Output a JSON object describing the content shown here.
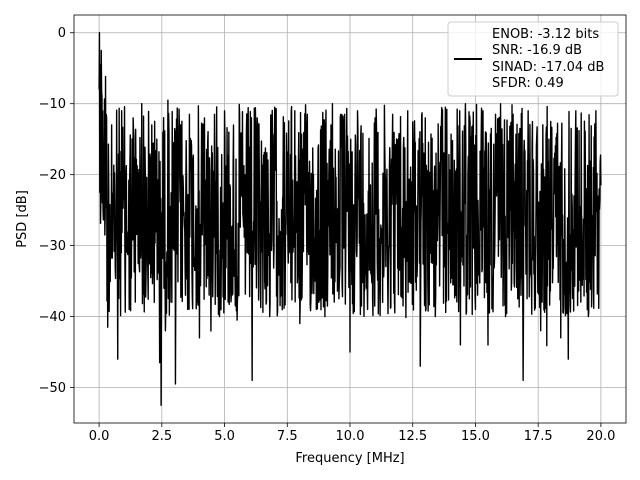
{
  "chart_data": {
    "type": "line",
    "title": "",
    "xlabel": "Frequency [MHz]",
    "ylabel": "PSD [dB]",
    "xlim": [
      -1,
      21
    ],
    "ylim": [
      -55,
      2.5
    ],
    "x_ticks": [
      0.0,
      2.5,
      5.0,
      7.5,
      10.0,
      12.5,
      15.0,
      17.5,
      20.0
    ],
    "x_tick_labels": [
      "0.0",
      "2.5",
      "5.0",
      "7.5",
      "10.0",
      "12.5",
      "15.0",
      "17.5",
      "20.0"
    ],
    "y_ticks": [
      0,
      -10,
      -20,
      -30,
      -40,
      -50
    ],
    "y_tick_labels": [
      "0",
      "−10",
      "−20",
      "−30",
      "−40",
      "−50"
    ],
    "grid": true,
    "legend_position": "top-right",
    "legend_entries": [
      "ENOB: -3.12 bits",
      "SNR: -16.9 dB",
      "SINAD: -17.04 dB",
      "SFDR: 0.49"
    ],
    "series": [
      {
        "color": "#000000",
        "x_range": [
          0,
          20
        ],
        "points": [
          [
            0.0,
            -8.0
          ],
          [
            0.02,
            0.0
          ],
          [
            0.05,
            -4.5
          ],
          [
            0.08,
            -2.5
          ],
          [
            0.11,
            -9.0
          ],
          [
            0.15,
            -11.0
          ],
          [
            0.2,
            -18.5
          ],
          [
            0.25,
            -26.0
          ],
          [
            0.3,
            -12.0
          ],
          [
            0.35,
            -41.5
          ],
          [
            0.5,
            -13.0
          ],
          [
            0.65,
            -33.0
          ],
          [
            0.75,
            -46.0
          ],
          [
            0.9,
            -11.0
          ],
          [
            1.2,
            -39.0
          ],
          [
            1.35,
            -12.0
          ],
          [
            1.6,
            -33.0
          ],
          [
            1.7,
            -10.0
          ],
          [
            1.95,
            -34.0
          ],
          [
            2.1,
            -13.0
          ],
          [
            2.2,
            -38.0
          ],
          [
            2.3,
            -15.0
          ],
          [
            2.42,
            -46.5
          ],
          [
            2.47,
            -52.5
          ],
          [
            2.55,
            -14.0
          ],
          [
            2.65,
            -42.0
          ],
          [
            2.75,
            -9.5
          ],
          [
            2.9,
            -38.0
          ],
          [
            3.05,
            -49.5
          ],
          [
            3.2,
            -13.0
          ],
          [
            3.45,
            -37.0
          ],
          [
            3.6,
            -11.5
          ],
          [
            3.9,
            -38.0
          ],
          [
            4.0,
            -43.0
          ],
          [
            4.2,
            -12.0
          ],
          [
            4.5,
            -35.0
          ],
          [
            4.6,
            -11.5
          ],
          [
            4.8,
            -40.0
          ],
          [
            5.0,
            -11.0
          ],
          [
            5.3,
            -37.0
          ],
          [
            5.5,
            -40.5
          ],
          [
            5.6,
            -11.5
          ],
          [
            5.9,
            -31.0
          ],
          [
            6.1,
            -49.0
          ],
          [
            6.3,
            -12.0
          ],
          [
            6.6,
            -35.0
          ],
          [
            6.8,
            -40.0
          ],
          [
            7.0,
            -10.5
          ],
          [
            7.4,
            -36.0
          ],
          [
            7.8,
            -11.0
          ],
          [
            8.0,
            -41.0
          ],
          [
            8.3,
            -11.5
          ],
          [
            8.6,
            -35.0
          ],
          [
            9.0,
            -40.0
          ],
          [
            9.3,
            -10.0
          ],
          [
            9.6,
            -33.0
          ],
          [
            10.0,
            -45.0
          ],
          [
            10.3,
            -11.0
          ],
          [
            10.7,
            -39.0
          ],
          [
            11.0,
            -12.0
          ],
          [
            11.3,
            -38.0
          ],
          [
            11.7,
            -11.5
          ],
          [
            12.0,
            -33.0
          ],
          [
            12.3,
            -11.0
          ],
          [
            12.8,
            -47.0
          ],
          [
            13.0,
            -12.0
          ],
          [
            13.4,
            -40.0
          ],
          [
            13.8,
            -10.5
          ],
          [
            14.2,
            -30.0
          ],
          [
            14.4,
            -44.0
          ],
          [
            14.6,
            -10.0
          ],
          [
            15.0,
            -39.0
          ],
          [
            15.3,
            -11.0
          ],
          [
            15.5,
            -44.0
          ],
          [
            15.8,
            -11.5
          ],
          [
            16.2,
            -40.0
          ],
          [
            16.5,
            -11.5
          ],
          [
            16.9,
            -49.0
          ],
          [
            17.1,
            -11.0
          ],
          [
            17.6,
            -42.0
          ],
          [
            18.0,
            -12.5
          ],
          [
            18.4,
            -43.0
          ],
          [
            18.7,
            -46.0
          ],
          [
            19.0,
            -11.0
          ],
          [
            19.5,
            -40.0
          ],
          [
            19.8,
            -11.0
          ],
          [
            20.0,
            -21.5
          ]
        ],
        "typical_range_db": [
          -40,
          -10
        ]
      }
    ]
  }
}
